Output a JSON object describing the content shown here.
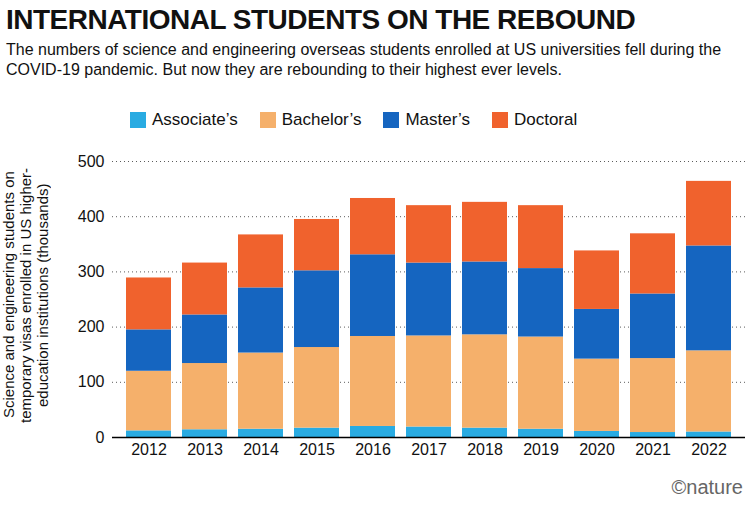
{
  "chart_data": {
    "type": "bar",
    "stacked": true,
    "title": "INTERNATIONAL STUDENTS ON THE REBOUND",
    "subtitle": "The numbers of science and engineering overseas students enrolled at US universities fell during the COVID-19 pandemic. But now they are rebounding to their highest ever levels.",
    "y_label": "Science and engineering students on temporary visas enrolled in US higher-education institutions (thousands)",
    "credit": "©nature",
    "categories": [
      "2012",
      "2013",
      "2014",
      "2015",
      "2016",
      "2017",
      "2018",
      "2019",
      "2020",
      "2021",
      "2022"
    ],
    "series": [
      {
        "name": "Associate’s",
        "color": "#29abe2",
        "values": [
          12,
          14,
          15,
          17,
          20,
          19,
          17,
          15,
          11,
          9,
          10
        ]
      },
      {
        "name": "Bachelor’s",
        "color": "#f5b06b",
        "values": [
          108,
          120,
          138,
          146,
          163,
          165,
          169,
          167,
          131,
          134,
          147
        ]
      },
      {
        "name": "Master’s",
        "color": "#1565c0",
        "values": [
          75,
          88,
          118,
          139,
          148,
          132,
          132,
          124,
          90,
          117,
          190
        ]
      },
      {
        "name": "Doctoral",
        "color": "#f0622d",
        "values": [
          94,
          94,
          96,
          93,
          102,
          104,
          108,
          114,
          106,
          109,
          117
        ]
      }
    ],
    "ylim": [
      0,
      500
    ],
    "yticks": [
      0,
      100,
      200,
      300,
      400,
      500
    ],
    "grid": true,
    "legend": "top-left"
  }
}
